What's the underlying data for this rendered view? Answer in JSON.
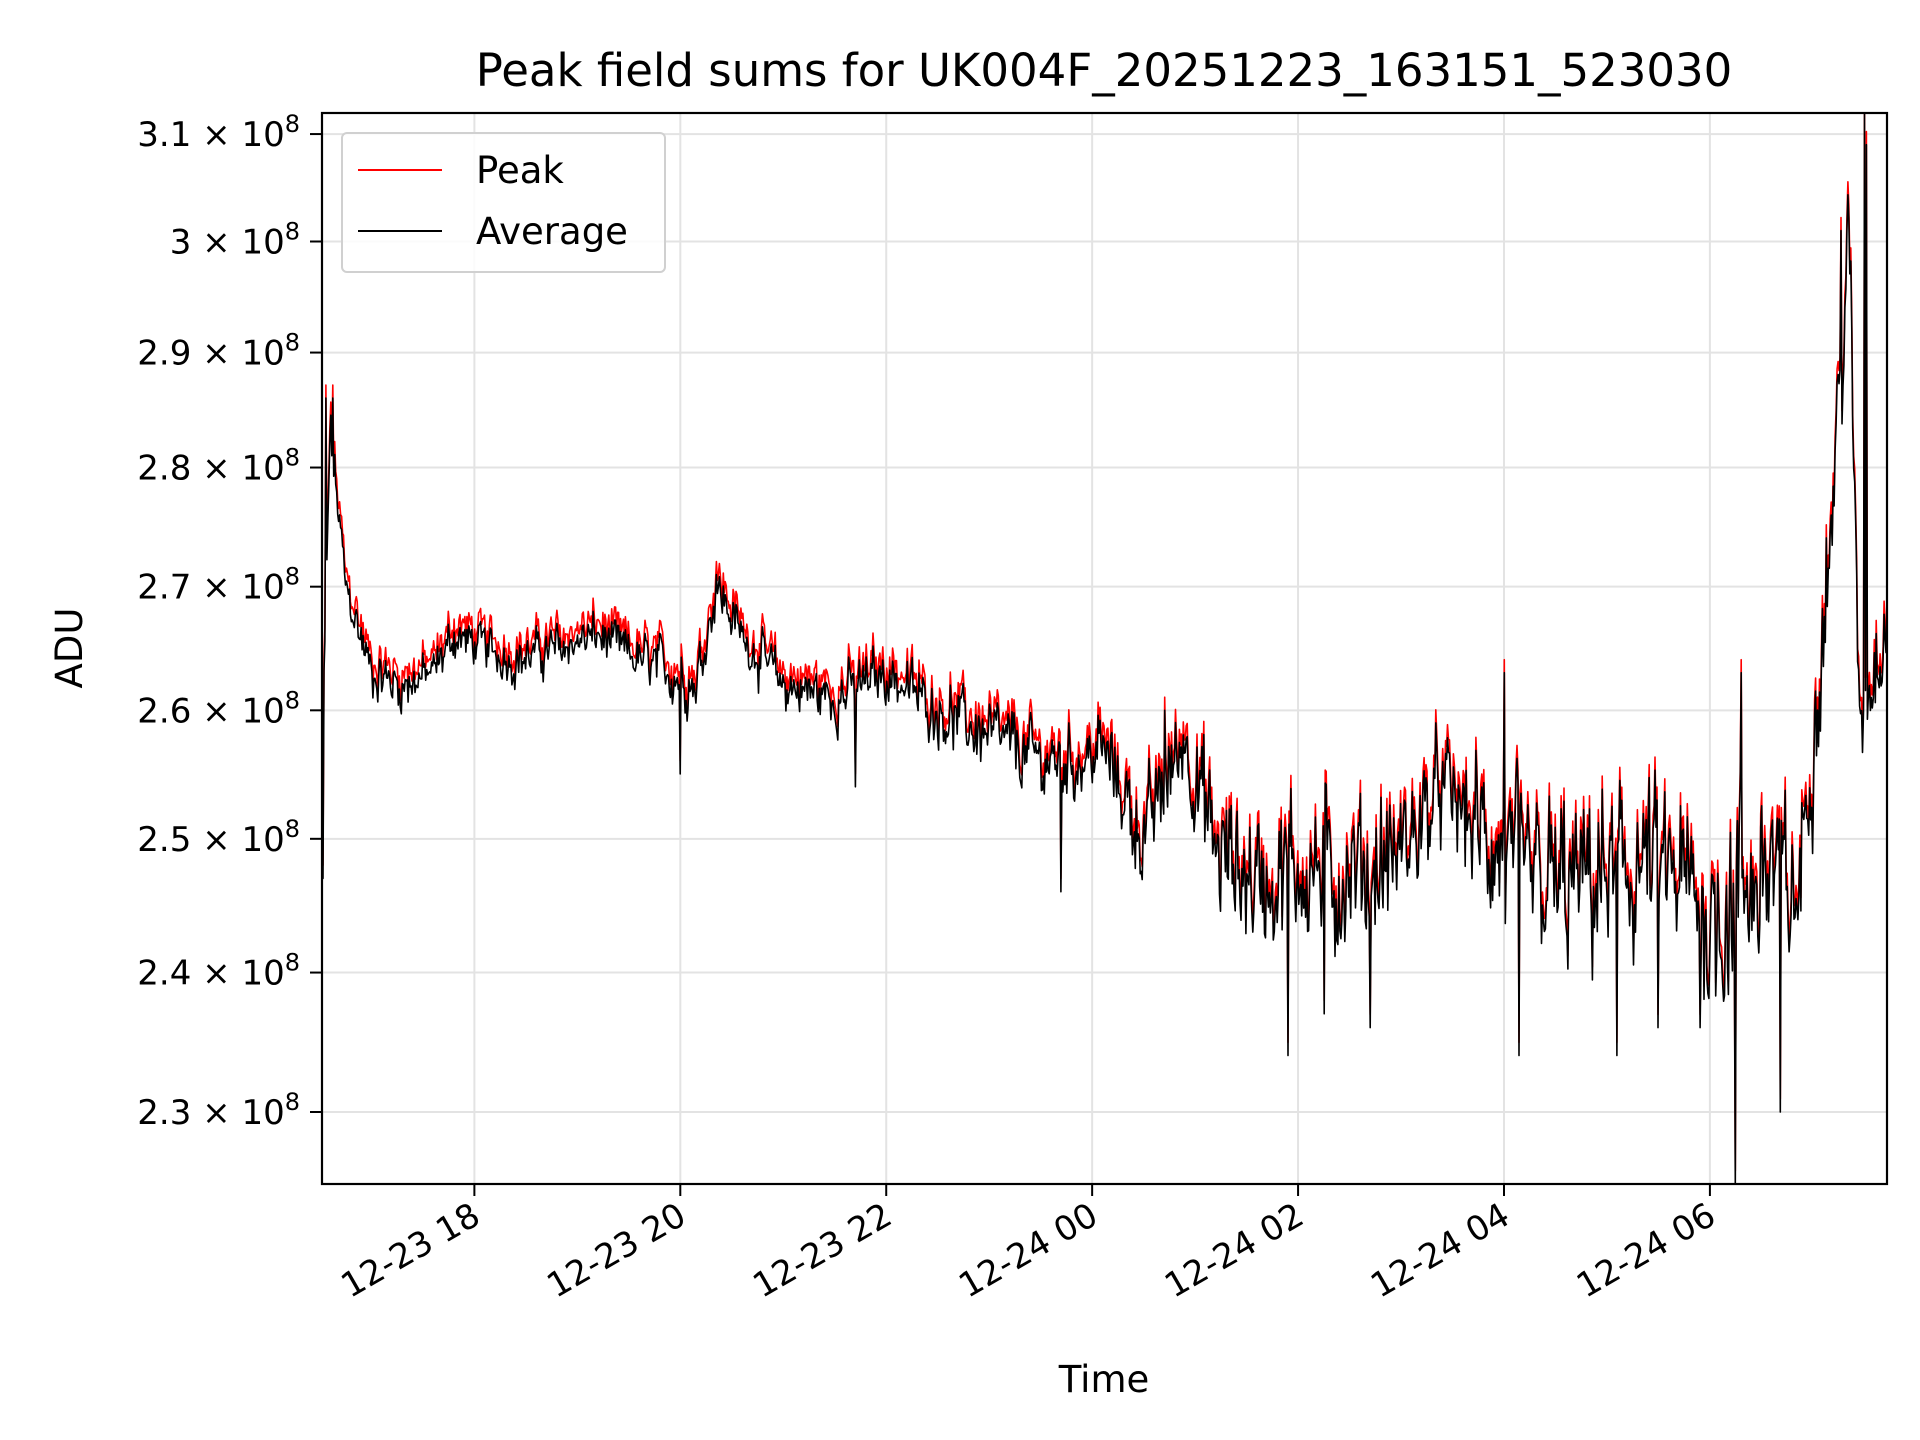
{
  "chart_data": {
    "type": "line",
    "title": "Peak field sums for UK004F_20251223_163151_523030",
    "xlabel": "Time",
    "ylabel": "ADU",
    "yscale": "log",
    "grid": true,
    "legend_position": "upper-left",
    "x_range_hours": [
      16.52,
      7.72
    ],
    "x_ticks": [
      {
        "label": "12-23 18",
        "hour": 18
      },
      {
        "label": "12-23 20",
        "hour": 20
      },
      {
        "label": "12-23 22",
        "hour": 22
      },
      {
        "label": "12-24 00",
        "hour": 24
      },
      {
        "label": "12-24 02",
        "hour": 26
      },
      {
        "label": "12-24 04",
        "hour": 28
      },
      {
        "label": "12-24 06",
        "hour": 30
      }
    ],
    "ylim": [
      225000000,
      312000000
    ],
    "y_ticks": [
      {
        "mantissa": "2.3",
        "value": 230000000
      },
      {
        "mantissa": "2.4",
        "value": 240000000
      },
      {
        "mantissa": "2.5",
        "value": 250000000
      },
      {
        "mantissa": "2.6",
        "value": 260000000
      },
      {
        "mantissa": "2.7",
        "value": 270000000
      },
      {
        "mantissa": "2.8",
        "value": 280000000
      },
      {
        "mantissa": "2.9",
        "value": 290000000
      },
      {
        "mantissa": "3",
        "value": 300000000
      },
      {
        "mantissa": "3.1",
        "value": 310000000
      }
    ],
    "y_tick_base": "× 10",
    "y_tick_exponent": "8",
    "series": [
      {
        "name": "Peak",
        "color": "#ff0000",
        "offset_fraction": 0.004
      },
      {
        "name": "Average",
        "color": "#000000",
        "offset_fraction": 0.0
      }
    ],
    "trend_hours": [
      16.52,
      16.6,
      16.75,
      17.0,
      17.3,
      17.6,
      17.8,
      18.1,
      18.4,
      18.8,
      19.2,
      19.6,
      19.95,
      20.15,
      20.35,
      20.6,
      21.0,
      21.5,
      22.0,
      22.5,
      23.0,
      23.5,
      23.9,
      24.1,
      24.5,
      24.9,
      25.2,
      25.6,
      26.0,
      26.4,
      26.8,
      27.0,
      27.4,
      27.8,
      28.2,
      28.6,
      29.0,
      29.4,
      29.8,
      30.0,
      30.3,
      30.6,
      30.85,
      31.0,
      31.15,
      31.25,
      31.3,
      31.35,
      31.45,
      31.55,
      31.62,
      31.72
    ],
    "trend_values_millions": [
      255,
      283,
      270,
      263,
      262,
      263,
      266,
      265,
      264,
      265,
      266,
      264,
      263,
      262,
      270,
      266,
      262,
      261,
      263,
      260,
      258,
      256,
      256,
      257,
      250,
      258,
      249,
      247,
      248,
      247,
      248,
      249,
      254,
      250,
      247,
      246,
      247,
      248,
      246,
      244,
      246,
      248,
      245,
      258,
      272,
      285,
      292,
      300,
      260,
      262,
      265,
      268
    ],
    "noise_amplitude_millions": [
      3,
      3,
      2,
      2.2,
      2.2,
      2,
      2,
      2,
      2,
      2,
      2,
      2.2,
      2.5,
      2.5,
      2.5,
      2,
      2.5,
      2.5,
      2.5,
      2.5,
      3,
      3,
      3,
      3,
      4,
      4,
      6,
      6,
      6,
      6,
      6,
      6,
      4,
      6,
      7,
      7,
      7,
      7,
      7,
      8,
      8,
      8,
      6,
      6,
      6,
      6,
      6,
      6,
      5,
      5,
      5,
      5
    ],
    "spikes": [
      {
        "hour": 16.53,
        "value_millions": 247
      },
      {
        "hour": 16.56,
        "value_millions": 286
      },
      {
        "hour": 16.62,
        "value_millions": 286
      },
      {
        "hour": 20.0,
        "value_millions": 255
      },
      {
        "hour": 20.35,
        "value_millions": 271
      },
      {
        "hour": 21.7,
        "value_millions": 254
      },
      {
        "hour": 23.7,
        "value_millions": 246
      },
      {
        "hour": 24.7,
        "value_millions": 260
      },
      {
        "hour": 25.9,
        "value_millions": 234
      },
      {
        "hour": 26.25,
        "value_millions": 237
      },
      {
        "hour": 26.7,
        "value_millions": 236
      },
      {
        "hour": 28.0,
        "value_millions": 263
      },
      {
        "hour": 28.15,
        "value_millions": 234
      },
      {
        "hour": 29.1,
        "value_millions": 234
      },
      {
        "hour": 29.5,
        "value_millions": 236
      },
      {
        "hour": 29.9,
        "value_millions": 236
      },
      {
        "hour": 30.25,
        "value_millions": 225
      },
      {
        "hour": 30.3,
        "value_millions": 263
      },
      {
        "hour": 30.68,
        "value_millions": 230
      },
      {
        "hour": 31.27,
        "value_millions": 301
      },
      {
        "hour": 31.5,
        "value_millions": 312
      },
      {
        "hour": 31.52,
        "value_millions": 309
      }
    ]
  }
}
